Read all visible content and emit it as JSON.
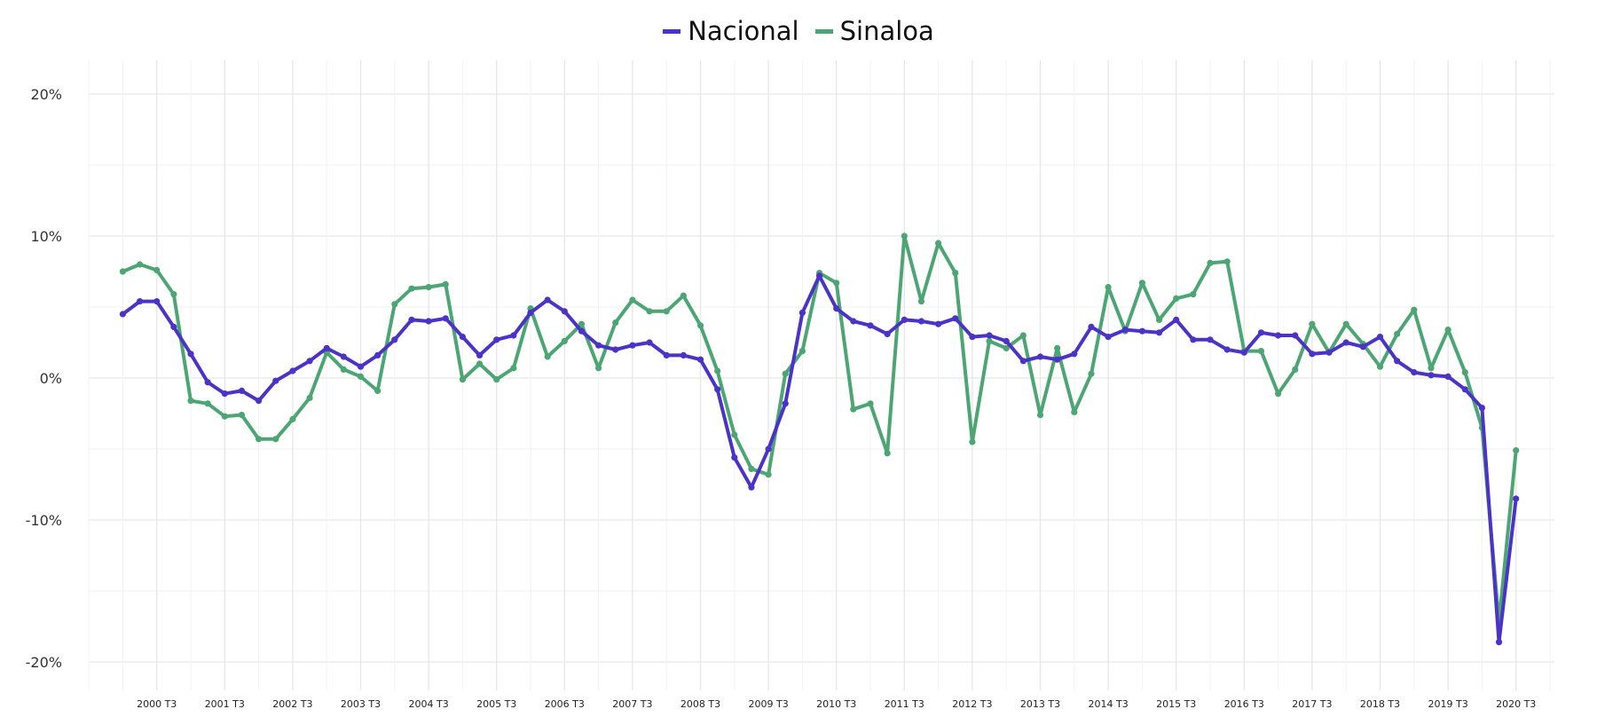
{
  "chart_data": {
    "type": "line",
    "title": "",
    "xlabel": "",
    "ylabel": "",
    "legend_position": "top-center",
    "ylim": [
      -22,
      22
    ],
    "y_ticks": [
      20,
      10,
      0,
      -10,
      -20
    ],
    "y_tick_labels": [
      "20%",
      "10%",
      "0%",
      "-10%",
      "-20%"
    ],
    "x_start": "2000 T1",
    "x_tick_labels": [
      "2000 T3",
      "2001 T3",
      "2002 T3",
      "2003 T3",
      "2004 T3",
      "2005 T3",
      "2006 T3",
      "2007 T3",
      "2008 T3",
      "2009 T3",
      "2010 T3",
      "2011 T3",
      "2012 T3",
      "2013 T3",
      "2014 T3",
      "2015 T3",
      "2016 T3",
      "2017 T3",
      "2018 T3",
      "2019 T3",
      "2020 T3"
    ],
    "series": [
      {
        "name": "Nacional",
        "color": "#4B33C8",
        "values": [
          4.5,
          5.4,
          5.4,
          3.6,
          1.7,
          -0.3,
          -1.1,
          -0.9,
          -1.6,
          -0.2,
          0.5,
          1.2,
          2.1,
          1.5,
          0.8,
          1.6,
          2.7,
          4.1,
          4.0,
          4.2,
          2.9,
          1.6,
          2.7,
          3.0,
          4.6,
          5.5,
          4.7,
          3.3,
          2.3,
          2.0,
          2.3,
          2.5,
          1.6,
          1.6,
          1.3,
          -0.8,
          -5.6,
          -7.7,
          -5.0,
          -1.8,
          4.6,
          7.2,
          4.9,
          4.0,
          3.7,
          3.1,
          4.1,
          4.0,
          3.8,
          4.2,
          2.9,
          3.0,
          2.6,
          1.2,
          1.5,
          1.3,
          1.7,
          3.6,
          2.9,
          3.4,
          3.3,
          3.2,
          4.1,
          2.7,
          2.7,
          2.0,
          1.8,
          3.2,
          3.0,
          3.0,
          1.7,
          1.8,
          2.5,
          2.2,
          2.9,
          1.2,
          0.4,
          0.2,
          0.1,
          -0.8,
          -2.1,
          -18.6,
          -8.5
        ]
      },
      {
        "name": "Sinaloa",
        "color": "#4CA673",
        "values": [
          7.5,
          8.0,
          7.6,
          5.9,
          -1.6,
          -1.8,
          -2.7,
          -2.6,
          -4.3,
          -4.3,
          -2.9,
          -1.4,
          1.8,
          0.6,
          0.1,
          -0.9,
          5.2,
          6.3,
          6.4,
          6.6,
          -0.1,
          1.0,
          -0.1,
          0.7,
          4.9,
          1.5,
          2.6,
          3.8,
          0.7,
          3.9,
          5.5,
          4.7,
          4.7,
          5.8,
          3.7,
          0.5,
          -4.0,
          -6.4,
          -6.8,
          0.3,
          1.9,
          7.4,
          6.7,
          -2.2,
          -1.8,
          -5.3,
          10.0,
          5.4,
          9.5,
          7.4,
          -4.5,
          2.6,
          2.1,
          3.0,
          -2.6,
          2.1,
          -2.4,
          0.3,
          6.4,
          3.3,
          6.7,
          4.1,
          5.6,
          5.9,
          8.1,
          8.2,
          1.9,
          1.9,
          -1.1,
          0.6,
          3.8,
          1.8,
          3.8,
          2.4,
          0.8,
          3.1,
          4.8,
          0.7,
          3.4,
          0.4,
          -3.5,
          -17.2,
          -5.1
        ]
      }
    ]
  }
}
